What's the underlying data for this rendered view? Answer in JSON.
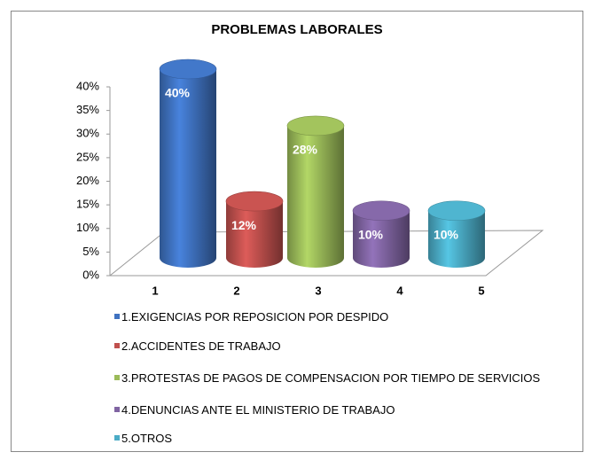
{
  "chart_data": {
    "type": "bar3d",
    "title": "PROBLEMAS LABORALES",
    "categories": [
      "1",
      "2",
      "3",
      "4",
      "5"
    ],
    "values": [
      40,
      12,
      28,
      10,
      10
    ],
    "value_labels": [
      "40%",
      "12%",
      "28%",
      "10%",
      "10%"
    ],
    "colors": [
      "#3f72c0",
      "#c0504d",
      "#9bbb59",
      "#8064a2",
      "#4bacc6"
    ],
    "legend": [
      "1.EXIGENCIAS POR REPOSICION POR DESPIDO",
      "2.ACCIDENTES DE TRABAJO",
      "3.PROTESTAS DE PAGOS DE COMPENSACION POR TIEMPO DE SERVICIOS",
      "4.DENUNCIAS ANTE EL MINISTERIO DE TRABAJO",
      "5.OTROS"
    ],
    "ylim": [
      0,
      40
    ],
    "yticks": [
      {
        "value": 0,
        "label": "0%"
      },
      {
        "value": 5,
        "label": "5%"
      },
      {
        "value": 10,
        "label": "10%"
      },
      {
        "value": 15,
        "label": "15%"
      },
      {
        "value": 20,
        "label": "20%"
      },
      {
        "value": 25,
        "label": "25%"
      },
      {
        "value": 30,
        "label": "30%"
      },
      {
        "value": 35,
        "label": "35%"
      },
      {
        "value": 40,
        "label": "40%"
      }
    ]
  }
}
